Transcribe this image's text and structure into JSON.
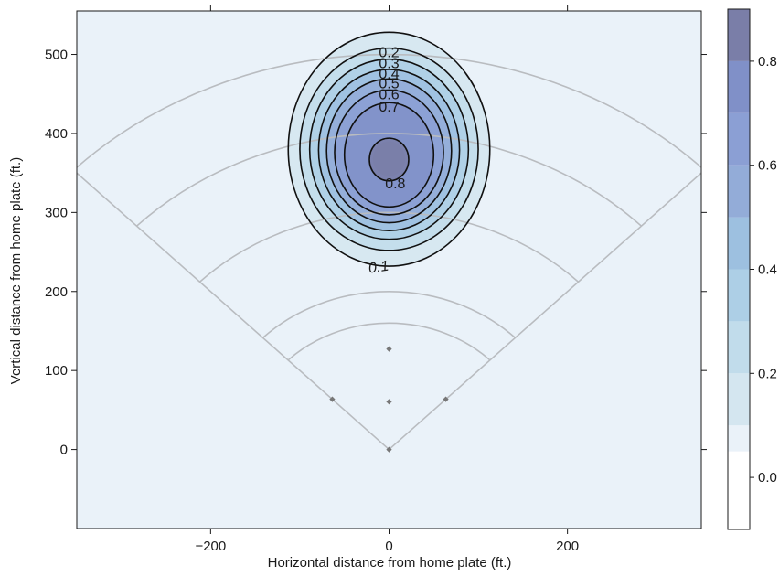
{
  "chart_data": {
    "type": "heatmap",
    "subtype": "contour-density-over-baseball-field",
    "xlabel": "Horizontal distance from home plate (ft.)",
    "ylabel": "Vertical distance from home plate (ft.)",
    "xlim": [
      -350,
      350
    ],
    "ylim": [
      -100,
      555
    ],
    "x_ticks": [
      -200,
      0,
      200
    ],
    "x_tick_labels": [
      "−200",
      "0",
      "200"
    ],
    "y_ticks": [
      0,
      100,
      200,
      300,
      400,
      500
    ],
    "y_tick_labels": [
      "0",
      "100",
      "200",
      "300",
      "400",
      "500"
    ],
    "grid": false,
    "density_peak": {
      "x": 0,
      "y": 368,
      "value": 0.88
    },
    "contours": [
      {
        "level": 0.1,
        "label": "0.1",
        "cx": 0,
        "cy": 380,
        "rx": 113,
        "ry": 148
      },
      {
        "level": 0.2,
        "label": "0.2",
        "cx": 0,
        "cy": 380,
        "rx": 100,
        "ry": 128
      },
      {
        "level": 0.3,
        "label": "0.3",
        "cx": 0,
        "cy": 380,
        "rx": 89,
        "ry": 114
      },
      {
        "level": 0.4,
        "label": "0.4",
        "cx": 0,
        "cy": 379,
        "rx": 79,
        "ry": 102
      },
      {
        "level": 0.5,
        "label": "0.5",
        "cx": 0,
        "cy": 378,
        "rx": 70,
        "ry": 91
      },
      {
        "level": 0.6,
        "label": "0.6",
        "cx": 0,
        "cy": 376,
        "rx": 61,
        "ry": 79
      },
      {
        "level": 0.7,
        "label": "0.7",
        "cx": 0,
        "cy": 373,
        "rx": 50,
        "ry": 66
      },
      {
        "level": 0.8,
        "label": "0.8",
        "cx": 0,
        "cy": 367,
        "rx": 22,
        "ry": 27
      }
    ],
    "field": {
      "foul_line_length": 500,
      "arc_radii": [
        160,
        200,
        300,
        400,
        500
      ],
      "bases": [
        {
          "name": "home",
          "x": 0,
          "y": 0
        },
        {
          "name": "first",
          "x": 63.6,
          "y": 63.6
        },
        {
          "name": "second",
          "x": 0,
          "y": 127.3
        },
        {
          "name": "third",
          "x": -63.6,
          "y": 63.6
        },
        {
          "name": "mound",
          "x": 0,
          "y": 60.5
        }
      ]
    },
    "colorbar": {
      "range": [
        -0.1,
        0.9
      ],
      "ticks": [
        0.0,
        0.2,
        0.4,
        0.6,
        0.8
      ],
      "tick_labels": [
        "0.0",
        "0.2",
        "0.4",
        "0.6",
        "0.8"
      ],
      "bins": [
        -0.1,
        0.05,
        0.1,
        0.2,
        0.3,
        0.4,
        0.5,
        0.6,
        0.7,
        0.8,
        0.9
      ]
    },
    "colors": {
      "background": "#eaf2f9",
      "field_lines": "#b9bcc0",
      "contour_lines": "#111111",
      "bins": [
        "#ffffff",
        "#eaf2f9",
        "#d4e6f0",
        "#c1dceb",
        "#adcfe6",
        "#9dc0e0",
        "#93acd8",
        "#8b9fd4",
        "#8090c8",
        "#7a7ea8"
      ]
    }
  }
}
